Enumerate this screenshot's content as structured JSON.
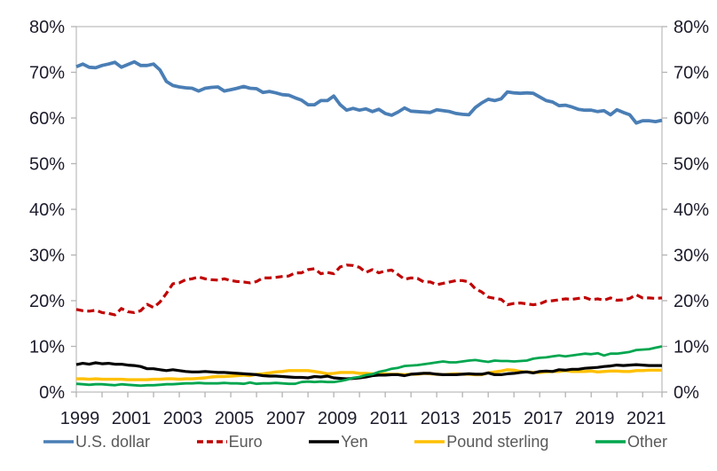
{
  "chart_data": {
    "type": "line",
    "title": "",
    "xlabel": "",
    "ylabel": "",
    "x_unit": "quarters",
    "x_range_years": [
      1999,
      2022
    ],
    "points_per_series": 92,
    "ylim": [
      0,
      80
    ],
    "grid": false,
    "legend_position": "bottom",
    "dual_y_axis": true,
    "y_tick_labels": [
      "0%",
      "10%",
      "20%",
      "30%",
      "40%",
      "50%",
      "60%",
      "70%",
      "80%"
    ],
    "x_tick_labels": [
      "1999",
      "2001",
      "2003",
      "2005",
      "2007",
      "2009",
      "2011",
      "2013",
      "2015",
      "2017",
      "2019",
      "2021"
    ],
    "style": {
      "frame_color": "#bfbfbf",
      "tick_color": "#b3b3b3",
      "axis_text_color": "#1c1c2c",
      "legend_text_color": "#595959",
      "background": "#ffffff"
    },
    "series": [
      {
        "name": "U.S. dollar",
        "color": "#4a7eb5",
        "dash": null,
        "width": 3.8,
        "values": [
          71.2,
          71.8,
          71.1,
          71.0,
          71.5,
          71.8,
          72.2,
          71.1,
          71.7,
          72.3,
          71.5,
          71.5,
          71.8,
          70.5,
          68.0,
          67.1,
          66.8,
          66.6,
          66.5,
          65.9,
          66.5,
          66.7,
          66.8,
          65.9,
          66.2,
          66.5,
          66.9,
          66.5,
          66.4,
          65.6,
          65.8,
          65.5,
          65.1,
          65.0,
          64.4,
          63.9,
          62.9,
          62.9,
          63.8,
          63.8,
          64.8,
          62.9,
          61.7,
          62.1,
          61.7,
          62.0,
          61.4,
          61.9,
          61.0,
          60.6,
          61.3,
          62.2,
          61.5,
          61.4,
          61.3,
          61.2,
          61.8,
          61.6,
          61.4,
          61.0,
          60.8,
          60.7,
          62.3,
          63.3,
          64.1,
          63.8,
          64.2,
          65.7,
          65.5,
          65.4,
          65.5,
          65.4,
          64.6,
          63.8,
          63.5,
          62.7,
          62.8,
          62.4,
          61.9,
          61.7,
          61.7,
          61.4,
          61.6,
          60.7,
          61.8,
          61.2,
          60.7,
          58.9,
          59.4,
          59.4,
          59.2,
          59.5
        ]
      },
      {
        "name": "Euro",
        "color": "#c00000",
        "dash": "8 4.5",
        "width": 3.2,
        "values": [
          18.1,
          17.8,
          17.7,
          17.9,
          17.4,
          17.2,
          16.9,
          18.3,
          17.6,
          17.4,
          17.8,
          19.2,
          18.5,
          19.7,
          21.6,
          23.7,
          23.9,
          24.6,
          24.8,
          25.2,
          24.8,
          24.6,
          24.5,
          24.8,
          24.4,
          24.2,
          24.1,
          23.9,
          24.2,
          25.0,
          25.0,
          25.1,
          25.3,
          25.4,
          26.1,
          26.1,
          26.8,
          27.0,
          25.9,
          26.2,
          25.9,
          27.4,
          27.8,
          27.7,
          27.3,
          26.2,
          26.8,
          26.1,
          26.5,
          26.7,
          25.7,
          24.7,
          25.0,
          24.9,
          24.1,
          24.1,
          23.5,
          23.8,
          24.1,
          24.4,
          24.4,
          24.1,
          22.6,
          21.9,
          20.8,
          20.5,
          20.3,
          19.1,
          19.4,
          19.5,
          19.3,
          19.1,
          19.3,
          19.9,
          20.0,
          20.2,
          20.4,
          20.3,
          20.5,
          20.7,
          20.2,
          20.4,
          20.1,
          20.6,
          20.1,
          20.2,
          20.5,
          21.3,
          20.6,
          20.6,
          20.5,
          20.6
        ]
      },
      {
        "name": "Yen",
        "color": "#000000",
        "dash": null,
        "width": 3.2,
        "values": [
          6.0,
          6.3,
          6.1,
          6.4,
          6.2,
          6.3,
          6.1,
          6.1,
          5.9,
          5.8,
          5.6,
          5.1,
          5.1,
          4.9,
          4.7,
          4.9,
          4.7,
          4.5,
          4.4,
          4.4,
          4.5,
          4.4,
          4.3,
          4.3,
          4.2,
          4.1,
          4.0,
          3.9,
          3.8,
          3.6,
          3.5,
          3.5,
          3.4,
          3.3,
          3.2,
          3.2,
          3.1,
          3.4,
          3.3,
          3.5,
          3.1,
          3.0,
          2.9,
          3.0,
          3.1,
          3.3,
          3.6,
          3.7,
          3.7,
          3.8,
          3.8,
          3.6,
          3.9,
          4.0,
          4.1,
          4.1,
          3.9,
          3.8,
          3.8,
          3.8,
          3.9,
          4.0,
          3.9,
          3.9,
          4.2,
          3.8,
          3.8,
          4.0,
          4.1,
          4.3,
          4.4,
          4.2,
          4.5,
          4.6,
          4.5,
          4.9,
          4.8,
          5.0,
          5.0,
          5.2,
          5.3,
          5.4,
          5.6,
          5.7,
          5.9,
          5.8,
          5.9,
          6.0,
          5.9,
          5.8,
          5.8,
          5.8
        ]
      },
      {
        "name": "Pound sterling",
        "color": "#ffc000",
        "dash": null,
        "width": 3.4,
        "values": [
          2.9,
          2.9,
          2.8,
          2.9,
          2.8,
          2.8,
          2.8,
          2.8,
          2.7,
          2.7,
          2.7,
          2.7,
          2.8,
          2.8,
          2.9,
          2.9,
          2.8,
          2.9,
          2.9,
          3.0,
          3.1,
          3.3,
          3.4,
          3.4,
          3.5,
          3.6,
          3.7,
          3.6,
          3.9,
          4.0,
          4.2,
          4.4,
          4.5,
          4.7,
          4.7,
          4.7,
          4.7,
          4.5,
          4.3,
          4.0,
          4.1,
          4.3,
          4.3,
          4.3,
          4.1,
          4.1,
          4.0,
          3.9,
          4.0,
          3.9,
          3.9,
          3.8,
          3.9,
          3.9,
          4.1,
          4.0,
          3.9,
          3.8,
          3.9,
          4.0,
          3.9,
          3.9,
          3.8,
          3.8,
          4.2,
          4.4,
          4.6,
          4.9,
          4.8,
          4.5,
          4.4,
          4.3,
          4.3,
          4.4,
          4.5,
          4.5,
          4.7,
          4.5,
          4.5,
          4.5,
          4.6,
          4.4,
          4.5,
          4.6,
          4.6,
          4.5,
          4.5,
          4.7,
          4.7,
          4.8,
          4.8,
          4.8
        ]
      },
      {
        "name": "Other",
        "color": "#00a64f",
        "dash": null,
        "width": 2.8,
        "values": [
          1.8,
          1.7,
          1.6,
          1.7,
          1.7,
          1.6,
          1.5,
          1.7,
          1.6,
          1.5,
          1.4,
          1.5,
          1.5,
          1.6,
          1.7,
          1.7,
          1.8,
          1.9,
          1.9,
          2.0,
          1.9,
          1.9,
          1.9,
          2.0,
          1.9,
          1.9,
          1.8,
          2.1,
          1.8,
          1.9,
          1.9,
          2.0,
          1.9,
          1.8,
          1.8,
          2.2,
          2.3,
          2.2,
          2.3,
          2.2,
          2.2,
          2.4,
          2.7,
          3.1,
          3.3,
          3.7,
          3.9,
          4.4,
          4.7,
          5.1,
          5.3,
          5.7,
          5.8,
          5.9,
          6.1,
          6.3,
          6.5,
          6.7,
          6.5,
          6.5,
          6.7,
          6.9,
          7.0,
          6.8,
          6.6,
          6.9,
          6.8,
          6.8,
          6.7,
          6.8,
          6.9,
          7.3,
          7.5,
          7.6,
          7.8,
          8.0,
          7.8,
          8.0,
          8.2,
          8.4,
          8.3,
          8.5,
          8.0,
          8.4,
          8.4,
          8.6,
          8.8,
          9.2,
          9.3,
          9.4,
          9.7,
          10.0
        ]
      }
    ]
  }
}
